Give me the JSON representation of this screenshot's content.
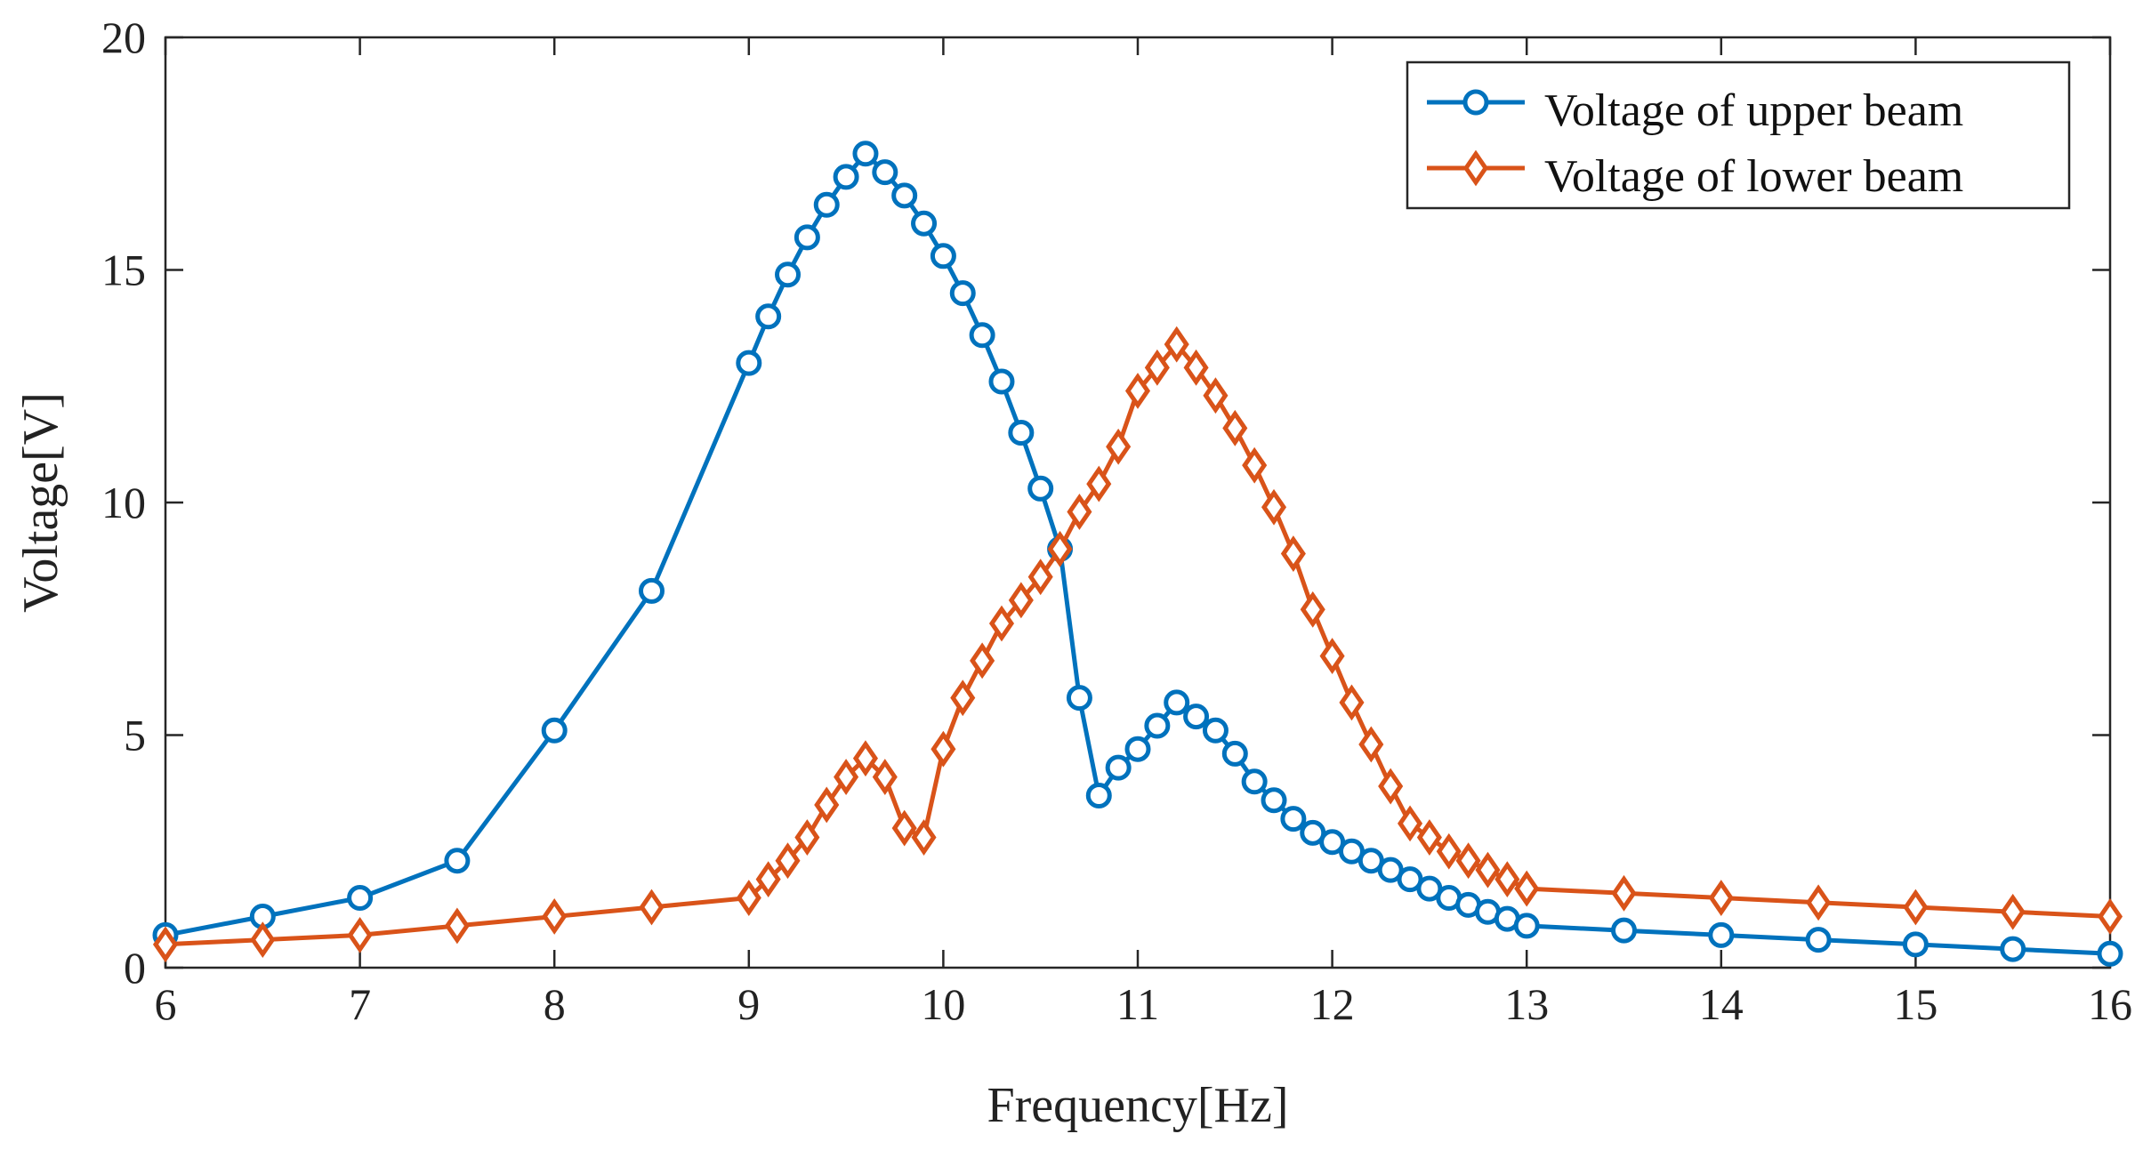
{
  "chart_data": {
    "type": "line",
    "title": "",
    "xlabel": "Frequency[Hz]",
    "ylabel": "Voltage[V]",
    "xlim": [
      6,
      16
    ],
    "ylim": [
      0,
      20
    ],
    "xticks": [
      6,
      7,
      8,
      9,
      10,
      11,
      12,
      13,
      14,
      15,
      16
    ],
    "yticks": [
      0,
      5,
      10,
      15,
      20
    ],
    "grid": false,
    "legend_position": "top-right",
    "series": [
      {
        "name": "Voltage of upper beam",
        "color": "#0072BD",
        "marker": "circle",
        "x": [
          6,
          6.5,
          7,
          7.5,
          8,
          8.5,
          9,
          9.1,
          9.2,
          9.3,
          9.4,
          9.5,
          9.6,
          9.7,
          9.8,
          9.9,
          10,
          10.1,
          10.2,
          10.3,
          10.4,
          10.5,
          10.6,
          10.7,
          10.8,
          10.9,
          11,
          11.1,
          11.2,
          11.3,
          11.4,
          11.5,
          11.6,
          11.7,
          11.8,
          11.9,
          12,
          12.1,
          12.2,
          12.3,
          12.4,
          12.5,
          12.6,
          12.7,
          12.8,
          12.9,
          13,
          13.5,
          14,
          14.5,
          15,
          15.5,
          16
        ],
        "y": [
          0.7,
          1.1,
          1.5,
          2.3,
          5.1,
          8.1,
          13.0,
          14.0,
          14.9,
          15.7,
          16.4,
          17.0,
          17.5,
          17.1,
          16.6,
          16.0,
          15.3,
          14.5,
          13.6,
          12.6,
          11.5,
          10.3,
          9.0,
          5.8,
          3.7,
          4.3,
          4.7,
          5.2,
          5.7,
          5.4,
          5.1,
          4.6,
          4.0,
          3.6,
          3.2,
          2.9,
          2.7,
          2.5,
          2.3,
          2.1,
          1.9,
          1.7,
          1.5,
          1.35,
          1.2,
          1.05,
          0.9,
          0.8,
          0.7,
          0.6,
          0.5,
          0.4,
          0.3
        ]
      },
      {
        "name": "Voltage of lower beam",
        "color": "#D95319",
        "marker": "diamond",
        "x": [
          6,
          6.5,
          7,
          7.5,
          8,
          8.5,
          9,
          9.1,
          9.2,
          9.3,
          9.4,
          9.5,
          9.6,
          9.7,
          9.8,
          9.9,
          10,
          10.1,
          10.2,
          10.3,
          10.4,
          10.5,
          10.6,
          10.7,
          10.8,
          10.9,
          11,
          11.1,
          11.2,
          11.3,
          11.4,
          11.5,
          11.6,
          11.7,
          11.8,
          11.9,
          12,
          12.1,
          12.2,
          12.3,
          12.4,
          12.5,
          12.6,
          12.7,
          12.8,
          12.9,
          13,
          13.5,
          14,
          14.5,
          15,
          15.5,
          16
        ],
        "y": [
          0.5,
          0.6,
          0.7,
          0.9,
          1.1,
          1.3,
          1.5,
          1.9,
          2.3,
          2.8,
          3.5,
          4.1,
          4.5,
          4.1,
          3.0,
          2.8,
          4.7,
          5.8,
          6.6,
          7.4,
          7.9,
          8.4,
          9.0,
          9.8,
          10.4,
          11.2,
          12.4,
          12.9,
          13.4,
          12.9,
          12.3,
          11.6,
          10.8,
          9.9,
          8.9,
          7.7,
          6.7,
          5.7,
          4.8,
          3.9,
          3.1,
          2.8,
          2.5,
          2.3,
          2.1,
          1.9,
          1.7,
          1.6,
          1.5,
          1.4,
          1.3,
          1.2,
          1.1
        ]
      }
    ]
  }
}
